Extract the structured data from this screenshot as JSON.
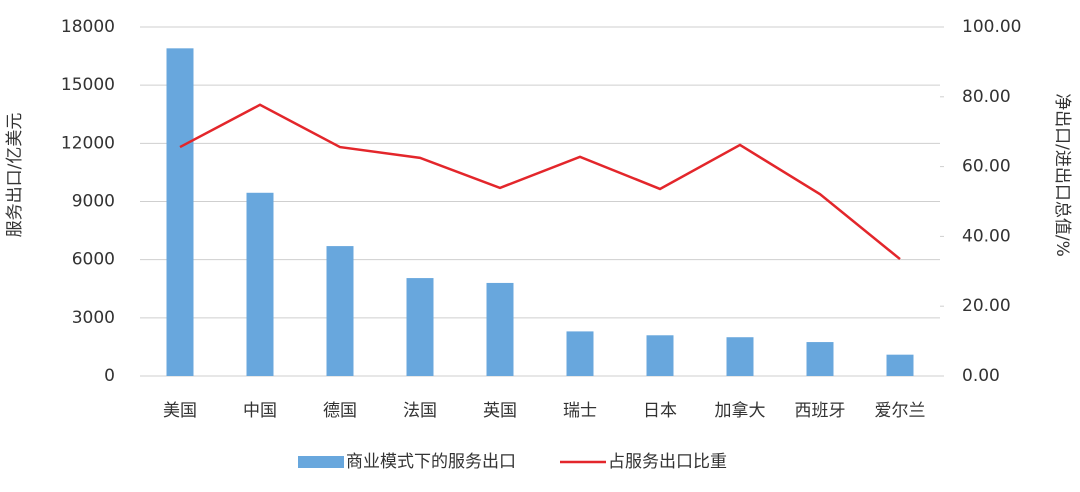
{
  "chart_data": {
    "type": "bar",
    "categories": [
      "美国",
      "中国",
      "德国",
      "法国",
      "英国",
      "瑞士",
      "日本",
      "加拿大",
      "西班牙",
      "爱尔兰"
    ],
    "series": [
      {
        "name": "商业模式下的服务出口",
        "type": "bar",
        "color": "#68a7dd",
        "values": [
          16900,
          9450,
          6700,
          5050,
          4800,
          2300,
          2100,
          2000,
          1750,
          1100
        ]
      },
      {
        "name": "占服务出口比重",
        "type": "line",
        "axis": "y2",
        "color": "#e3262b",
        "values": [
          65.6,
          77.7,
          65.6,
          62.5,
          53.9,
          62.8,
          53.6,
          66.2,
          52.1,
          33.5
        ]
      }
    ],
    "y_label": "服务出口/亿美元",
    "y2_label": "净出口/进出口总值/%",
    "ylim": [
      0,
      18000
    ],
    "yticks": [
      0,
      3000,
      6000,
      9000,
      12000,
      15000,
      18000
    ],
    "y2lim": [
      0,
      100
    ],
    "y2ticks": [
      {
        "value": 0,
        "label": "0.00"
      },
      {
        "value": 20,
        "label": "20.00"
      },
      {
        "value": 40,
        "label": "40.00"
      },
      {
        "value": 60,
        "label": "60.00"
      },
      {
        "value": 80,
        "label": "80.00"
      },
      {
        "value": 100,
        "label": "100.00"
      }
    ],
    "grid": true,
    "legend": "bottom"
  }
}
